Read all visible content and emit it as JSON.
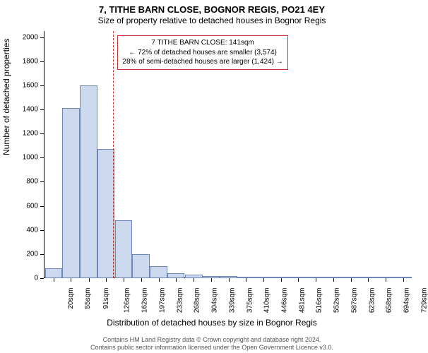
{
  "title": "7, TITHE BARN CLOSE, BOGNOR REGIS, PO21 4EY",
  "subtitle": "Size of property relative to detached houses in Bognor Regis",
  "ylabel": "Number of detached properties",
  "xlabel": "Distribution of detached houses by size in Bognor Regis",
  "footer_line1": "Contains HM Land Registry data © Crown copyright and database right 2024.",
  "footer_line2": "Contains public sector information licensed under the Open Government Licence v3.0.",
  "chart": {
    "type": "histogram",
    "background_color": "#ffffff",
    "bar_fill": "#cdd9ee",
    "bar_stroke": "#6d87b8",
    "bar_stroke_width": 1,
    "refline_color": "#cc3333",
    "refline_value": 141,
    "annotation": {
      "border_color": "#cc3333",
      "bg_color": "#ffffff",
      "lines": [
        "7 TITHE BARN CLOSE: 141sqm",
        "← 72% of detached houses are smaller (3,574)",
        "28% of semi-detached houses are larger (1,424) →"
      ]
    },
    "y": {
      "min": 0,
      "max": 2050,
      "ticks": [
        0,
        200,
        400,
        600,
        800,
        1000,
        1200,
        1400,
        1600,
        1800,
        2000
      ]
    },
    "x": {
      "min": 0,
      "max": 745,
      "tick_labels": [
        "20sqm",
        "55sqm",
        "91sqm",
        "126sqm",
        "162sqm",
        "197sqm",
        "233sqm",
        "268sqm",
        "304sqm",
        "339sqm",
        "375sqm",
        "410sqm",
        "446sqm",
        "481sqm",
        "516sqm",
        "552sqm",
        "587sqm",
        "623sqm",
        "658sqm",
        "694sqm",
        "729sqm"
      ],
      "tick_centers": [
        20,
        55,
        91,
        126,
        162,
        197,
        233,
        268,
        304,
        339,
        375,
        410,
        446,
        481,
        516,
        552,
        587,
        623,
        658,
        694,
        729
      ],
      "bin_width": 35.5
    },
    "bars": [
      {
        "center": 20,
        "value": 80
      },
      {
        "center": 55,
        "value": 1410
      },
      {
        "center": 91,
        "value": 1600
      },
      {
        "center": 126,
        "value": 1070
      },
      {
        "center": 162,
        "value": 480
      },
      {
        "center": 197,
        "value": 200
      },
      {
        "center": 233,
        "value": 100
      },
      {
        "center": 268,
        "value": 40
      },
      {
        "center": 304,
        "value": 30
      },
      {
        "center": 339,
        "value": 20
      },
      {
        "center": 375,
        "value": 15
      },
      {
        "center": 410,
        "value": 5
      },
      {
        "center": 446,
        "value": 3
      },
      {
        "center": 481,
        "value": 2
      },
      {
        "center": 516,
        "value": 2
      },
      {
        "center": 552,
        "value": 1
      },
      {
        "center": 587,
        "value": 1
      },
      {
        "center": 623,
        "value": 1
      },
      {
        "center": 658,
        "value": 1
      },
      {
        "center": 694,
        "value": 1
      },
      {
        "center": 729,
        "value": 1
      }
    ]
  }
}
